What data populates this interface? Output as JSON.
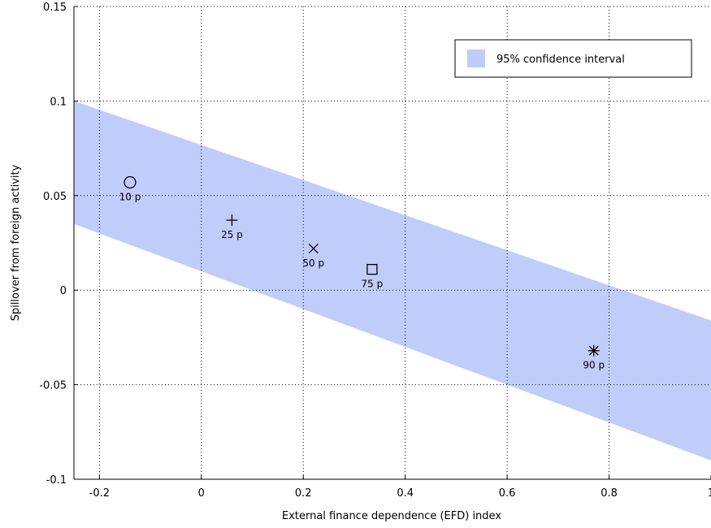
{
  "chart_data": {
    "type": "scatter",
    "title": "",
    "xlabel": "External finance dependence (EFD) index",
    "ylabel": "Spillover from foreign activity",
    "xlim": [
      -0.25,
      1.0
    ],
    "ylim": [
      -0.1,
      0.15
    ],
    "xticks": [
      -0.2,
      0,
      0.2,
      0.4,
      0.6,
      0.8,
      1
    ],
    "xtick_labels": [
      "-0.2",
      "0",
      "0.2",
      "0.4",
      "0.6",
      "0.8",
      "1"
    ],
    "yticks": [
      -0.1,
      -0.05,
      0,
      0.05,
      0.1,
      0.15
    ],
    "ytick_labels": [
      "-0.1",
      "-0.05",
      "0",
      "0.05",
      "0.1",
      "0.15"
    ],
    "grid": true,
    "grid_style": "dotted",
    "legend": {
      "placement": "top-right",
      "entries": [
        "95% confidence interval"
      ]
    },
    "band": {
      "name": "95% confidence interval",
      "color": "#c0cdfb",
      "x": [
        -0.25,
        1.0
      ],
      "upper": [
        0.1,
        -0.016
      ],
      "lower": [
        0.035,
        -0.09
      ]
    },
    "points": [
      {
        "label": "10 p",
        "x": -0.14,
        "y": 0.057,
        "marker": "circle"
      },
      {
        "label": "25 p",
        "x": 0.06,
        "y": 0.037,
        "marker": "plus"
      },
      {
        "label": "50 p",
        "x": 0.22,
        "y": 0.022,
        "marker": "x"
      },
      {
        "label": "75 p",
        "x": 0.335,
        "y": 0.011,
        "marker": "square"
      },
      {
        "label": "90 p",
        "x": 0.77,
        "y": -0.032,
        "marker": "star"
      }
    ]
  }
}
